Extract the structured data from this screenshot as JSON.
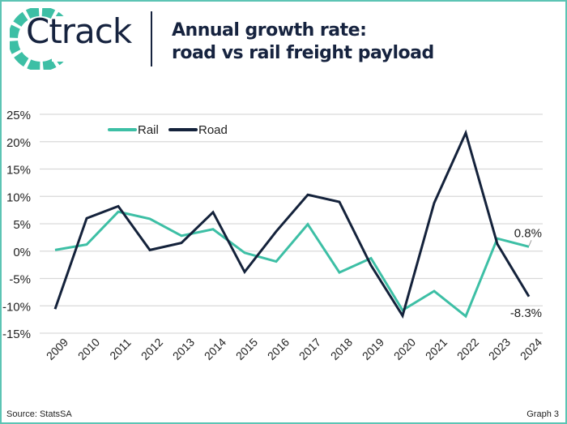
{
  "header": {
    "logo_text": "Ctrack",
    "title_line1": "Annual growth rate:",
    "title_line2": "road vs rail freight payload"
  },
  "footer": {
    "source": "Source: StatsSA",
    "graph_label": "Graph 3"
  },
  "colors": {
    "rail": "#3dbfa5",
    "road": "#14223b",
    "border": "#5cc4b4"
  },
  "chart_data": {
    "type": "line",
    "title": "Annual growth rate: road vs rail freight payload",
    "xlabel": "",
    "ylabel": "",
    "categories": [
      "2009",
      "2010",
      "2011",
      "2012",
      "2013",
      "2014",
      "2015",
      "2016",
      "2017",
      "2018",
      "2019",
      "2020",
      "2021",
      "2022",
      "2023",
      "2024"
    ],
    "ylim": [
      -15,
      25
    ],
    "yticks": [
      "-15%",
      "-10%",
      "-5%",
      "0%",
      "5%",
      "10%",
      "15%",
      "20%",
      "25%"
    ],
    "grid": true,
    "legend_position": "top",
    "series": [
      {
        "name": "Rail",
        "values": [
          0.2,
          1.2,
          7.2,
          5.9,
          2.8,
          4.0,
          -0.3,
          -1.9,
          4.9,
          -3.9,
          -1.3,
          -10.8,
          -7.3,
          -11.9,
          2.3,
          0.8
        ]
      },
      {
        "name": "Road",
        "values": [
          -10.6,
          6.0,
          8.2,
          0.2,
          1.5,
          7.1,
          -3.8,
          3.6,
          10.3,
          9.0,
          -2.6,
          -11.8,
          8.8,
          21.6,
          1.3,
          -8.3
        ]
      }
    ],
    "annotations": [
      {
        "series": "Rail",
        "x": "2024",
        "text": "0.8%"
      },
      {
        "series": "Road",
        "x": "2024",
        "text": "-8.3%"
      }
    ]
  }
}
